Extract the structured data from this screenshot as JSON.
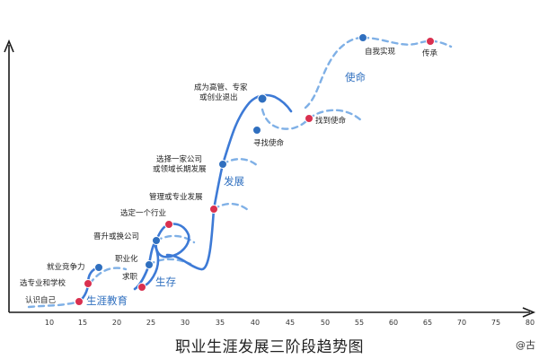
{
  "title": "职业生涯发展三阶段趋势图",
  "watermark": "@古",
  "x_ticks": [
    "10",
    "15",
    "20",
    "25",
    "30",
    "35",
    "40",
    "45",
    "50",
    "55",
    "60",
    "65",
    "70",
    "75",
    "80"
  ],
  "phases": [
    {
      "key": "shengya",
      "text": "生涯教育"
    },
    {
      "key": "shengcun",
      "text": "生存"
    },
    {
      "key": "fazhan",
      "text": "发展"
    },
    {
      "key": "shiming",
      "text": "使命"
    }
  ],
  "points": [
    {
      "key": "renshi",
      "label": "认识自己",
      "color": "red"
    },
    {
      "key": "xuanzhuanye",
      "label": "选专业和学校",
      "color": "red"
    },
    {
      "key": "jiuye",
      "label": "就业竞争力",
      "color": "blue"
    },
    {
      "key": "qiuzhi",
      "label": "求职",
      "color": "red"
    },
    {
      "key": "zhiyehua",
      "label": "职业化",
      "color": "blue"
    },
    {
      "key": "jinsheng",
      "label": "晋升或换公司",
      "color": "blue"
    },
    {
      "key": "xuanhangye",
      "label": "选定一个行业",
      "color": "red"
    },
    {
      "key": "guanli",
      "label": "管理或专业发展",
      "color": "red"
    },
    {
      "key": "xuangongsi",
      "label": "选择一家公司 或领域长期发展",
      "color": "blue"
    },
    {
      "key": "gaoguan",
      "label": "成为高管、专家 或创业退出",
      "color": "blue"
    },
    {
      "key": "xunzhao",
      "label": "寻找使命",
      "color": "blue"
    },
    {
      "key": "zhaodao",
      "label": "找到使命",
      "color": "red"
    },
    {
      "key": "ziwo",
      "label": "自我实现",
      "color": "blue"
    },
    {
      "key": "chuancheng",
      "label": "传承",
      "color": "red"
    }
  ],
  "colors": {
    "blue": "#2f6fbf",
    "red": "#d9304f",
    "curve": "#3d7ad6",
    "dash": "#7fb0e6",
    "axis": "#1a1a1a",
    "phase_text": "#2f6fbf"
  }
}
